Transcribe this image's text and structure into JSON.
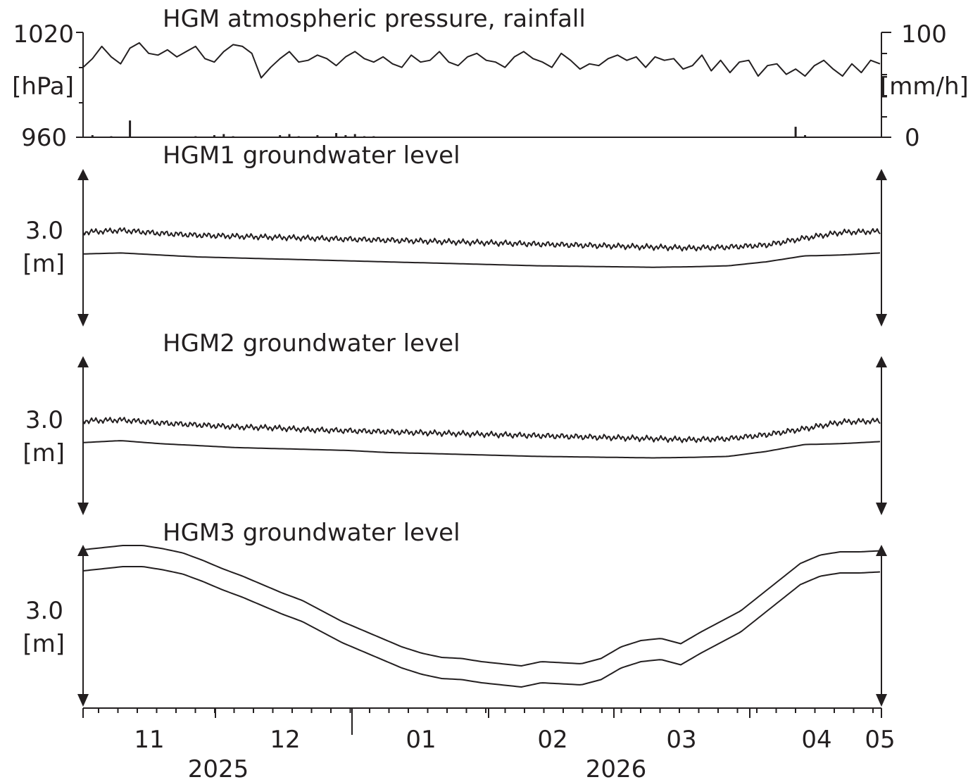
{
  "chart_data": [
    {
      "type": "line",
      "title": "HGM atmospheric pressure, rainfall",
      "y_left": {
        "ticks": [
          "1020",
          "960"
        ],
        "unit": "[hPa]",
        "range": [
          960,
          1020
        ]
      },
      "y_right": {
        "ticks": [
          "100",
          "0"
        ],
        "unit": "[mm/h]",
        "range": [
          0,
          100
        ]
      },
      "series": [
        {
          "kind": "line",
          "values": [
            1000,
            1005,
            1012,
            1006,
            1002,
            1011,
            1014,
            1008,
            1007,
            1010,
            1006,
            1009,
            1012,
            1005,
            1003,
            1009,
            1013,
            1012,
            1008,
            994,
            1000,
            1005,
            1009,
            1003,
            1004,
            1007,
            1005,
            1001,
            1006,
            1009,
            1005,
            1003,
            1006,
            1002,
            1000,
            1007,
            1003,
            1004,
            1009,
            1003,
            1001,
            1006,
            1008,
            1004,
            1003,
            1000,
            1006,
            1009,
            1005,
            1003,
            1000,
            1008,
            1004,
            999,
            1002,
            1001,
            1005,
            1007,
            1004,
            1006,
            1000,
            1006,
            1004,
            1005,
            999,
            1001,
            1007,
            998,
            1004,
            997,
            1003,
            1004,
            995,
            1001,
            1002,
            996,
            999,
            995,
            1001,
            1004,
            999,
            995,
            1002,
            997,
            1004,
            1002
          ]
        },
        {
          "kind": "bar",
          "values": [
            0,
            2,
            0,
            1,
            0,
            16,
            0,
            0,
            0,
            0,
            0,
            0,
            1,
            0,
            2,
            3,
            1,
            0,
            0,
            0,
            0,
            2,
            3,
            1,
            0,
            2,
            0,
            4,
            2,
            3,
            1,
            1,
            0,
            0,
            0,
            0,
            0,
            0,
            0,
            0,
            0,
            0,
            0,
            0,
            0,
            0,
            0,
            0,
            0,
            0,
            0,
            0,
            0,
            0,
            0,
            0,
            0,
            0,
            0,
            0,
            0,
            0,
            0,
            0,
            0,
            0,
            0,
            0,
            0,
            0,
            0,
            0,
            0,
            0,
            0,
            0,
            10,
            2,
            0,
            0,
            0,
            0,
            0,
            0,
            0,
            0
          ]
        }
      ]
    },
    {
      "type": "line",
      "title": "HGM1 groundwater level",
      "y_ticks": [
        "3.0"
      ],
      "y_unit": "[m]",
      "series": [
        {
          "values": [
            3.0,
            3.02,
            2.99,
            2.97,
            2.96,
            2.95,
            2.94,
            2.93,
            2.92,
            2.91,
            2.9,
            2.89,
            2.88,
            2.87,
            2.86,
            2.85,
            2.84,
            2.85,
            2.87,
            2.94,
            3.0,
            3.01
          ]
        },
        {
          "values": [
            2.78,
            2.79,
            2.77,
            2.75,
            2.74,
            2.73,
            2.72,
            2.71,
            2.7,
            2.69,
            2.68,
            2.67,
            2.66,
            2.655,
            2.65,
            2.645,
            2.65,
            2.66,
            2.7,
            2.76,
            2.77,
            2.79
          ]
        }
      ]
    },
    {
      "type": "line",
      "title": "HGM2 groundwater level",
      "y_ticks": [
        "3.0"
      ],
      "y_unit": "[m]",
      "series": [
        {
          "values": [
            3.0,
            3.01,
            2.98,
            2.96,
            2.94,
            2.93,
            2.91,
            2.9,
            2.89,
            2.88,
            2.87,
            2.86,
            2.85,
            2.84,
            2.83,
            2.82,
            2.81,
            2.82,
            2.86,
            2.92,
            2.99,
            3.0
          ]
        },
        {
          "values": [
            2.78,
            2.8,
            2.77,
            2.75,
            2.73,
            2.72,
            2.71,
            2.7,
            2.68,
            2.67,
            2.66,
            2.65,
            2.64,
            2.635,
            2.63,
            2.625,
            2.63,
            2.64,
            2.69,
            2.76,
            2.77,
            2.79
          ]
        }
      ]
    },
    {
      "type": "line",
      "title": "HGM3 groundwater level",
      "y_ticks": [
        "3.0"
      ],
      "y_unit": "[m]",
      "series": [
        {
          "values": [
            3.58,
            3.6,
            3.62,
            3.62,
            3.59,
            3.55,
            3.48,
            3.4,
            3.33,
            3.25,
            3.17,
            3.1,
            3.0,
            2.9,
            2.82,
            2.74,
            2.66,
            2.6,
            2.56,
            2.55,
            2.52,
            2.5,
            2.48,
            2.52,
            2.51,
            2.5,
            2.55,
            2.66,
            2.72,
            2.74,
            2.69,
            2.8,
            2.9,
            3.0,
            3.15,
            3.3,
            3.45,
            3.53,
            3.56,
            3.56,
            3.57
          ]
        },
        {
          "values": [
            3.38,
            3.4,
            3.42,
            3.42,
            3.39,
            3.35,
            3.28,
            3.2,
            3.13,
            3.05,
            2.97,
            2.9,
            2.8,
            2.7,
            2.62,
            2.54,
            2.46,
            2.4,
            2.36,
            2.35,
            2.32,
            2.3,
            2.28,
            2.32,
            2.31,
            2.3,
            2.35,
            2.46,
            2.52,
            2.54,
            2.49,
            2.6,
            2.7,
            2.8,
            2.95,
            3.1,
            3.25,
            3.33,
            3.36,
            3.36,
            3.37
          ]
        }
      ]
    }
  ],
  "x_axis": {
    "month_labels": [
      "11",
      "12",
      "01",
      "02",
      "03",
      "04",
      "05"
    ],
    "year_labels": [
      "2025",
      "2026"
    ]
  }
}
